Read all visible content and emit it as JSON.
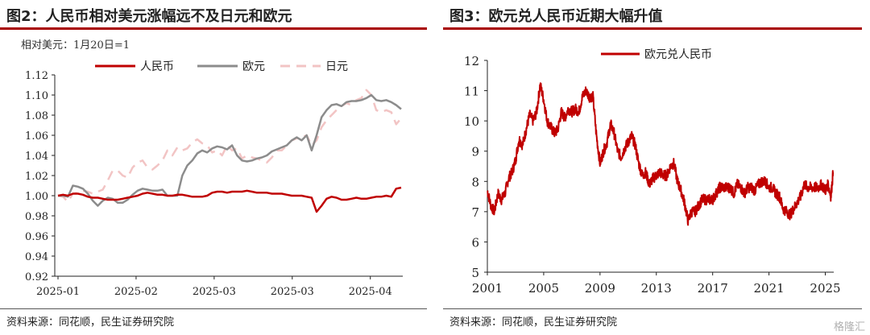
{
  "left": {
    "title": "图2：人民币相对美元涨幅远不及日元和欧元",
    "source": "资料来源：同花顺，民生证券研究院"
  },
  "right": {
    "title": "图3：欧元兑人民币近期大幅升值",
    "source": "资料来源：同花顺，民生证券研究院"
  },
  "watermark": "格隆汇",
  "colors": {
    "cny": "#c00000",
    "eur": "#8c8c8c",
    "jpy": "#f2c4c4",
    "eurcny": "#c00000",
    "accent": "#a80000"
  },
  "chart_data": [
    {
      "type": "line",
      "annotation": "相对美元：1月20日=1",
      "y_ticks": [
        "1.12",
        "1.10",
        "1.08",
        "1.06",
        "1.04",
        "1.02",
        "1.00",
        "0.98",
        "0.96",
        "0.94",
        "0.92"
      ],
      "x_ticks": [
        "2025-01",
        "2025-02",
        "2025-03",
        "2025-03",
        "2025-04"
      ],
      "ylim": [
        0.92,
        1.12
      ],
      "legend_position": "top",
      "series": [
        {
          "name": "人民币",
          "values": [
            1.0,
            1.001,
            1.0,
            1.002,
            1.002,
            1.001,
            0.999,
            0.998,
            0.998,
            0.997,
            0.996,
            0.996,
            0.996,
            0.997,
            0.998,
            0.999,
            1.0,
            1.002,
            1.003,
            1.002,
            1.001,
            1.001,
            1.0,
            1.0,
            1.001,
            1.001,
            1.0,
            0.999,
            0.999,
            0.999,
            1.0,
            1.003,
            1.004,
            1.004,
            1.003,
            1.004,
            1.004,
            1.004,
            1.005,
            1.004,
            1.003,
            1.003,
            1.003,
            1.002,
            1.002,
            1.002,
            1.001,
            1.0,
            1.0,
            1.0,
            0.999,
            0.998,
            0.984,
            0.99,
            0.997,
            0.999,
            0.998,
            0.996,
            0.996,
            0.997,
            0.998,
            0.997,
            0.997,
            0.998,
            0.999,
            0.999,
            1.0,
            0.999,
            1.007,
            1.008
          ]
        },
        {
          "name": "欧元",
          "values": [
            1.0,
            1.0,
            0.999,
            1.01,
            1.009,
            1.007,
            1.002,
            0.995,
            0.99,
            0.995,
            0.998,
            0.997,
            0.993,
            0.993,
            0.996,
            1.001,
            1.005,
            1.007,
            1.006,
            1.005,
            1.005,
            1.006,
            1.0,
            1.0,
            1.0,
            1.02,
            1.03,
            1.035,
            1.042,
            1.045,
            1.043,
            1.047,
            1.049,
            1.048,
            1.046,
            1.05,
            1.04,
            1.035,
            1.034,
            1.035,
            1.037,
            1.038,
            1.04,
            1.044,
            1.046,
            1.048,
            1.05,
            1.055,
            1.058,
            1.055,
            1.06,
            1.045,
            1.06,
            1.078,
            1.085,
            1.09,
            1.091,
            1.089,
            1.093,
            1.094,
            1.094,
            1.095,
            1.097,
            1.1,
            1.095,
            1.094,
            1.095,
            1.093,
            1.09,
            1.086
          ]
        },
        {
          "name": "日元",
          "values": [
            1.0,
            0.999,
            0.994,
            1.002,
            1.003,
            1.005,
            1.004,
            1.002,
            1.004,
            1.006,
            1.015,
            1.025,
            1.025,
            1.02,
            1.018,
            1.028,
            1.033,
            1.035,
            1.028,
            1.026,
            1.03,
            1.035,
            1.045,
            1.04,
            1.048,
            1.045,
            1.047,
            1.053,
            1.056,
            1.052,
            1.05,
            1.043,
            1.045,
            1.04,
            1.05,
            1.045,
            1.047,
            1.037,
            1.04,
            1.038,
            1.037,
            1.035,
            1.033,
            1.038,
            1.045,
            1.045,
            1.05,
            1.055,
            1.057,
            1.058,
            1.06,
            1.05,
            1.055,
            1.068,
            1.075,
            1.08,
            1.085,
            1.089,
            1.092,
            1.09,
            1.095,
            1.097,
            1.105,
            1.1,
            1.085,
            1.083,
            1.085,
            1.083,
            1.071,
            1.077
          ]
        }
      ]
    },
    {
      "type": "line",
      "y_ticks": [
        "12",
        "11",
        "10",
        "9",
        "8",
        "7",
        "6",
        "5"
      ],
      "x_ticks": [
        "2001",
        "2005",
        "2009",
        "2013",
        "2017",
        "2021",
        "2025"
      ],
      "ylim": [
        5,
        12
      ],
      "xlim": [
        2001,
        2025.6
      ],
      "legend_position": "top-center",
      "series": [
        {
          "name": "欧元兑人民币",
          "x": [
            2001.0,
            2001.25,
            2001.5,
            2001.75,
            2002.0,
            2002.25,
            2002.5,
            2002.75,
            2003.0,
            2003.25,
            2003.5,
            2003.75,
            2004.0,
            2004.25,
            2004.5,
            2004.75,
            2005.0,
            2005.25,
            2005.5,
            2005.75,
            2006.0,
            2006.25,
            2006.5,
            2006.75,
            2007.0,
            2007.25,
            2007.5,
            2007.75,
            2008.0,
            2008.25,
            2008.5,
            2008.75,
            2009.0,
            2009.25,
            2009.5,
            2009.75,
            2010.0,
            2010.25,
            2010.5,
            2010.75,
            2011.0,
            2011.25,
            2011.5,
            2011.75,
            2012.0,
            2012.25,
            2012.5,
            2012.75,
            2013.0,
            2013.25,
            2013.5,
            2013.75,
            2014.0,
            2014.25,
            2014.5,
            2014.75,
            2015.0,
            2015.25,
            2015.5,
            2015.75,
            2016.0,
            2016.25,
            2016.5,
            2016.75,
            2017.0,
            2017.25,
            2017.5,
            2017.75,
            2018.0,
            2018.25,
            2018.5,
            2018.75,
            2019.0,
            2019.25,
            2019.5,
            2019.75,
            2020.0,
            2020.25,
            2020.5,
            2020.75,
            2021.0,
            2021.25,
            2021.5,
            2021.75,
            2022.0,
            2022.25,
            2022.5,
            2022.75,
            2023.0,
            2023.25,
            2023.5,
            2023.75,
            2024.0,
            2024.25,
            2024.5,
            2024.75,
            2025.0,
            2025.2,
            2025.4,
            2025.55
          ],
          "values": [
            7.7,
            7.2,
            7.0,
            7.6,
            7.4,
            7.6,
            8.1,
            8.3,
            8.7,
            9.4,
            9.2,
            9.7,
            10.2,
            10.0,
            10.3,
            11.2,
            10.7,
            10.0,
            9.8,
            9.6,
            9.7,
            10.3,
            10.1,
            10.4,
            10.3,
            10.4,
            10.3,
            10.8,
            11.0,
            10.8,
            10.8,
            9.5,
            8.6,
            9.0,
            9.3,
            9.9,
            9.6,
            9.0,
            8.8,
            9.1,
            9.3,
            9.5,
            9.2,
            8.6,
            8.2,
            8.3,
            7.9,
            8.1,
            8.2,
            8.3,
            8.2,
            8.2,
            8.5,
            8.6,
            8.0,
            7.7,
            7.3,
            6.7,
            7.0,
            7.0,
            7.2,
            7.4,
            7.4,
            7.4,
            7.4,
            7.6,
            7.8,
            7.8,
            7.8,
            7.8,
            7.6,
            7.9,
            7.8,
            7.6,
            7.8,
            7.8,
            7.7,
            7.9,
            8.0,
            8.0,
            7.8,
            7.8,
            7.6,
            7.5,
            7.1,
            7.0,
            6.9,
            7.1,
            7.3,
            7.5,
            7.9,
            7.8,
            7.8,
            7.8,
            7.8,
            7.9,
            7.7,
            7.9,
            7.5,
            8.3
          ]
        }
      ]
    }
  ]
}
